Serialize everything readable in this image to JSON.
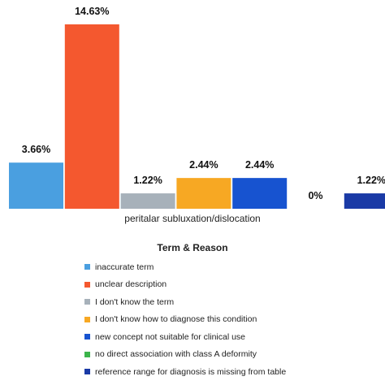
{
  "chart_data": {
    "type": "bar",
    "title": "",
    "categories": [
      "peritalar subluxation/dislocation"
    ],
    "series": [
      {
        "name": "inaccurate term",
        "value": 3.66,
        "label": "3.66%",
        "color": "#4a9fe0"
      },
      {
        "name": "unclear description",
        "value": 14.63,
        "label": "14.63%",
        "color": "#f4582f"
      },
      {
        "name": "I don't know the term",
        "value": 1.22,
        "label": "1.22%",
        "color": "#a7b1ba"
      },
      {
        "name": "I don't know how to diagnose this condition",
        "value": 2.44,
        "label": "2.44%",
        "color": "#f7a823"
      },
      {
        "name": "new concept not suitable for clinical use",
        "value": 2.44,
        "label": "2.44%",
        "color": "#1753d0"
      },
      {
        "name": "no direct association with class A deformity",
        "value": 0,
        "label": "0%",
        "color": "#3cb44b"
      },
      {
        "name": "reference range for diagnosis is missing from table",
        "value": 1.22,
        "label": "1.22%",
        "color": "#1a3aa6"
      }
    ],
    "ylim": [
      0,
      15
    ],
    "xlabel": "",
    "ylabel": "",
    "legend": {
      "title": "Term & Reason",
      "position": "bottom"
    },
    "grid": false
  }
}
